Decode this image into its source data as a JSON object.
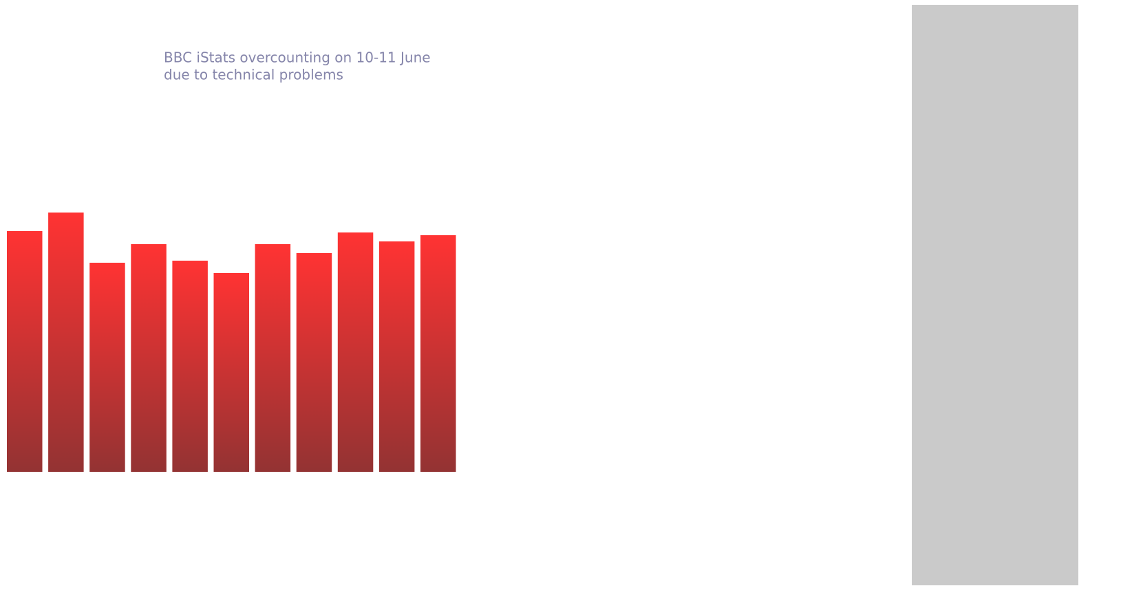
{
  "chart_data": {
    "type": "bar",
    "annotation": [
      "BBC iStats overcounting on 10-11 June",
      "due to technical problems"
    ],
    "values": [
      350,
      377,
      304,
      331,
      307,
      289,
      331,
      318,
      348,
      335,
      344
    ],
    "color": "#ff3333",
    "gradient_end": "#933333",
    "ylim": [
      0,
      400
    ]
  }
}
